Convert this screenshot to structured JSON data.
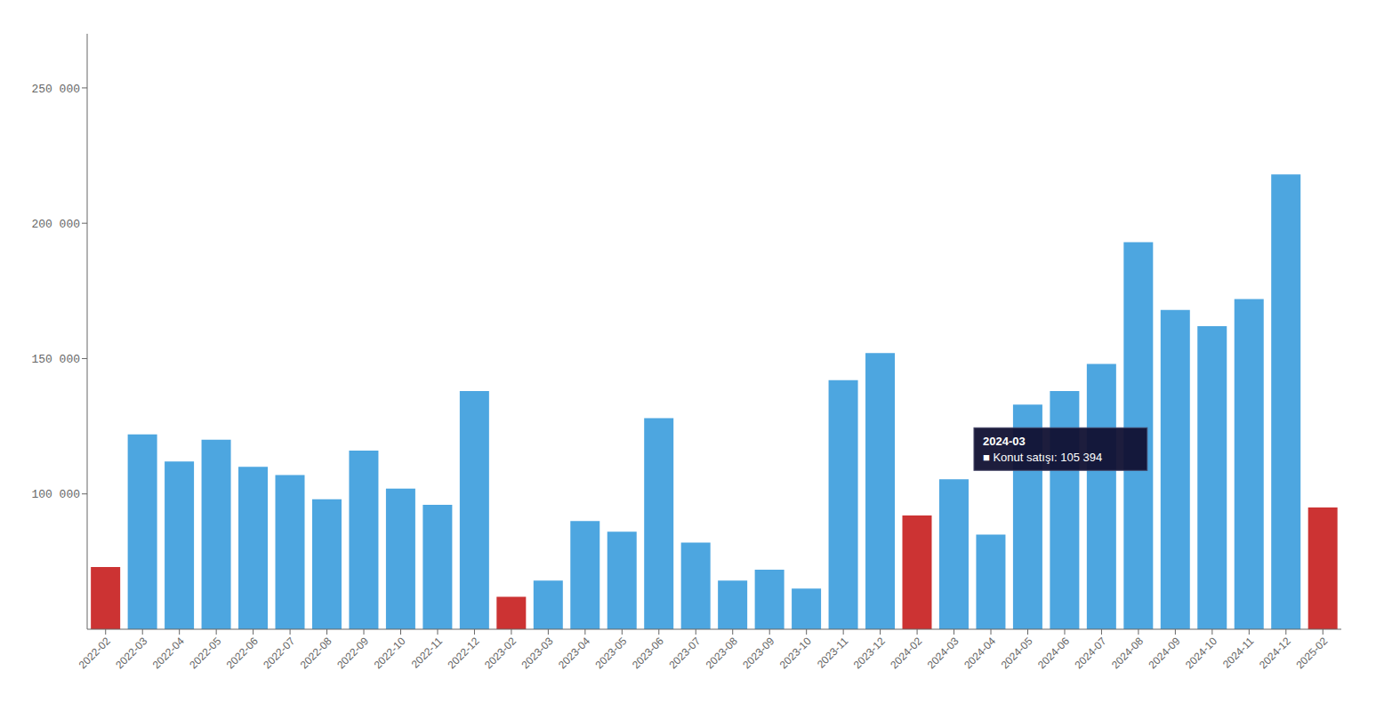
{
  "chart_data": {
    "type": "bar",
    "categories": [
      "2022-02",
      "2022-03",
      "2022-04",
      "2022-05",
      "2022-06",
      "2022-07",
      "2022-08",
      "2022-09",
      "2022-10",
      "2022-11",
      "2022-12",
      "2023-02",
      "2023-03",
      "2023-04",
      "2023-05",
      "2023-06",
      "2023-07",
      "2023-08",
      "2023-09",
      "2023-10",
      "2023-11",
      "2023-12",
      "2024-02",
      "2024-03",
      "2024-04",
      "2024-05",
      "2024-06",
      "2024-07",
      "2024-08",
      "2024-09",
      "2024-10",
      "2024-11",
      "2024-12",
      "2025-02"
    ],
    "values": [
      73000,
      122000,
      112000,
      120000,
      110000,
      107000,
      98000,
      116000,
      102000,
      96000,
      138000,
      62000,
      68000,
      90000,
      86000,
      128000,
      82000,
      68000,
      72000,
      65000,
      142000,
      152000,
      92000,
      105394,
      85000,
      133000,
      138000,
      148000,
      193000,
      168000,
      162000,
      172000,
      218000,
      95000
    ],
    "colors": [
      "#cc3333",
      "#4da6e0",
      "#4da6e0",
      "#4da6e0",
      "#4da6e0",
      "#4da6e0",
      "#4da6e0",
      "#4da6e0",
      "#4da6e0",
      "#4da6e0",
      "#4da6e0",
      "#cc3333",
      "#4da6e0",
      "#4da6e0",
      "#4da6e0",
      "#4da6e0",
      "#4da6e0",
      "#4da6e0",
      "#4da6e0",
      "#4da6e0",
      "#4da6e0",
      "#4da6e0",
      "#cc3333",
      "#4da6e0",
      "#4da6e0",
      "#4da6e0",
      "#4da6e0",
      "#4da6e0",
      "#4da6e0",
      "#4da6e0",
      "#4da6e0",
      "#4da6e0",
      "#4da6e0",
      "#cc3333"
    ],
    "ylim": [
      50000,
      270000
    ],
    "yticks": [
      {
        "value": 100000,
        "label": "100 000"
      },
      {
        "value": 150000,
        "label": "150 000"
      },
      {
        "value": 200000,
        "label": "200 000"
      },
      {
        "value": 250000,
        "label": "250 000"
      }
    ],
    "grid": false,
    "annotations": [
      {
        "x": "2024-03",
        "y": 105394,
        "text": "2024-03\n■ Konut satışı: 105 394"
      }
    ]
  }
}
